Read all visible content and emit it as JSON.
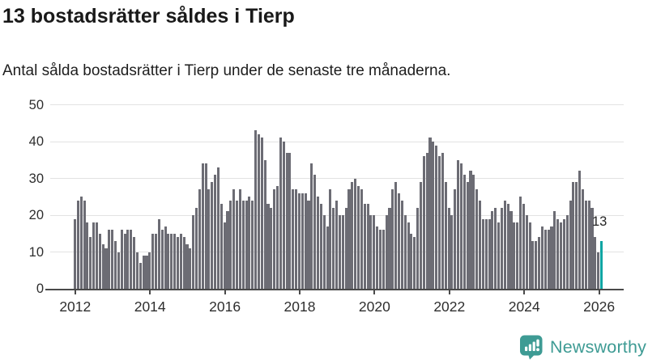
{
  "title": "13 bostadsrätter såldes i Tierp",
  "subtitle": "Antal sålda bostadsrätter i Tierp under de senaste tre månaderna.",
  "chart_data": {
    "type": "bar",
    "title": "13 bostadsrätter såldes i Tierp",
    "subtitle": "Antal sålda bostadsrätter i Tierp under de senaste tre månaderna.",
    "xlabel": "",
    "ylabel": "",
    "ylim": [
      0,
      50
    ],
    "grid": true,
    "x_first_year": 2012,
    "x_tick_labels": [
      "2012",
      "2014",
      "2016",
      "2018",
      "2020",
      "2022",
      "2024",
      "2026"
    ],
    "y_tick_labels": [
      "0",
      "10",
      "20",
      "30",
      "40",
      "50"
    ],
    "bar_color": "#6c6c74",
    "highlight_color": "#0da5a3",
    "highlight_last": true,
    "highlight_value_label": "13",
    "x_start": "2012-01",
    "x_freq": "monthly",
    "values": [
      19,
      24,
      25,
      24,
      18,
      14,
      18,
      18,
      15,
      12,
      11,
      16,
      16,
      13,
      10,
      16,
      15,
      16,
      16,
      14,
      10,
      7,
      9,
      9,
      10,
      15,
      15,
      19,
      16,
      17,
      15,
      15,
      15,
      14,
      15,
      14,
      12,
      11,
      20,
      22,
      27,
      34,
      34,
      27,
      29,
      31,
      33,
      23,
      18,
      21,
      24,
      27,
      24,
      27,
      24,
      24,
      25,
      24,
      43,
      42,
      41,
      35,
      23,
      22,
      27,
      28,
      41,
      40,
      37,
      37,
      27,
      27,
      26,
      26,
      26,
      24,
      34,
      31,
      25,
      23,
      20,
      17,
      27,
      22,
      24,
      20,
      20,
      22,
      27,
      29,
      30,
      28,
      27,
      23,
      23,
      20,
      20,
      17,
      16,
      16,
      20,
      22,
      27,
      29,
      26,
      24,
      20,
      18,
      15,
      14,
      22,
      29,
      36,
      37,
      41,
      40,
      39,
      36,
      37,
      29,
      22,
      20,
      27,
      35,
      34,
      31,
      29,
      32,
      31,
      27,
      24,
      19,
      19,
      19,
      21,
      22,
      18,
      22,
      24,
      23,
      21,
      18,
      18,
      25,
      23,
      20,
      18,
      13,
      13,
      14,
      17,
      16,
      16,
      17,
      21,
      19,
      18,
      19,
      20,
      24,
      29,
      29,
      32,
      27,
      24,
      24,
      22,
      14,
      10,
      13
    ]
  },
  "branding": {
    "logo_text": "Newsworthy",
    "logo_color": "#3e9b94",
    "logo_icon": "bar-chart-badge-icon"
  }
}
